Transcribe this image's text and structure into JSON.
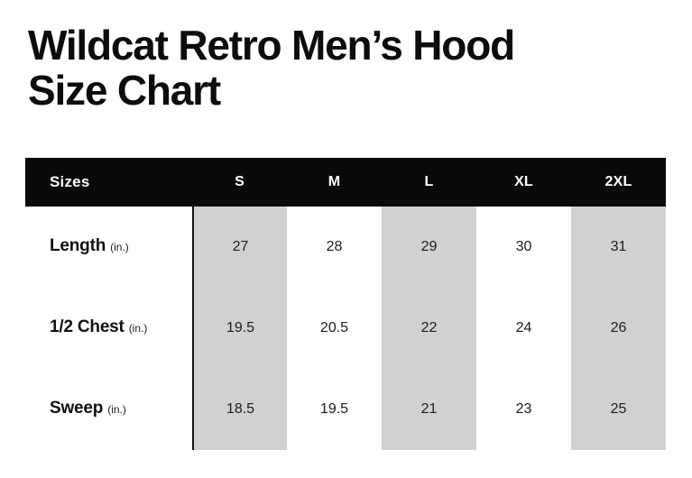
{
  "header": {
    "title_lines": [
      "Wildcat Retro Men’s Hood",
      "Size Chart"
    ]
  },
  "table": {
    "columns": [
      "Sizes",
      "S",
      "M",
      "L",
      "XL",
      "2XL"
    ],
    "rows": [
      {
        "label": "Length",
        "unit": "(in.)",
        "values": [
          "27",
          "28",
          "29",
          "30",
          "31"
        ]
      },
      {
        "label": "1/2 Chest",
        "unit": "(in.)",
        "values": [
          "19.5",
          "20.5",
          "22",
          "24",
          "26"
        ]
      },
      {
        "label": "Sweep",
        "unit": "(in.)",
        "values": [
          "18.5",
          "19.5",
          "21",
          "23",
          "25"
        ]
      }
    ],
    "shaded_columns": [
      "S",
      "L",
      "2XL"
    ]
  },
  "colors": {
    "header_bg": "#0a0a0a",
    "header_text": "#ffffff",
    "shaded_column_bg": "#d1d1d1",
    "title_text": "#0c0c0c",
    "body_text": "#1c1c1c",
    "background": "#ffffff",
    "divider_line": "#161616"
  },
  "chart_data": {
    "type": "table",
    "title": "Wildcat Retro Men’s Hood Size Chart",
    "columns": [
      "Sizes",
      "S",
      "M",
      "L",
      "XL",
      "2XL"
    ],
    "unit": "in.",
    "rows": [
      {
        "measure": "Length (in.)",
        "values": [
          27,
          28,
          29,
          30,
          31
        ]
      },
      {
        "measure": "1/2 Chest (in.)",
        "values": [
          19.5,
          20.5,
          22,
          24,
          26
        ]
      },
      {
        "measure": "Sweep (in.)",
        "values": [
          18.5,
          19.5,
          21,
          23,
          25
        ]
      }
    ],
    "layout": {
      "header_style": "black-bar-white-text",
      "shaded_columns": [
        "S",
        "L",
        "2XL"
      ],
      "grid": "off"
    }
  }
}
